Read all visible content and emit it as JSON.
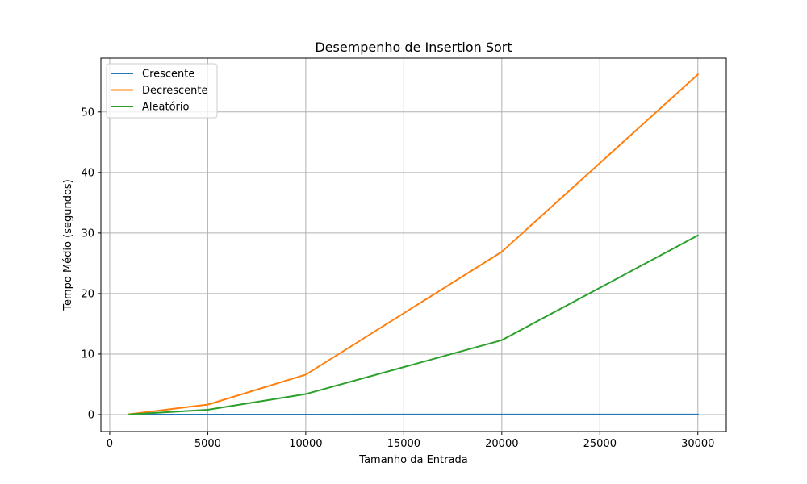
{
  "chart_data": {
    "type": "line",
    "title": "Desempenho de Insertion Sort",
    "xlabel": "Tamanho da Entrada",
    "ylabel": "Tempo Médio (segundos)",
    "x": [
      1000,
      5000,
      10000,
      20000,
      30000
    ],
    "xlim": [
      -0.45,
      31.45
    ],
    "ylim": [
      -2.8,
      58.9
    ],
    "xticks": [
      0,
      5000,
      10000,
      15000,
      20000,
      25000,
      30000
    ],
    "xtick_labels": [
      "0",
      "5000",
      "10000",
      "15000",
      "20000",
      "25000",
      "30000"
    ],
    "yticks": [
      0,
      10,
      20,
      30,
      40,
      50
    ],
    "ytick_labels": [
      "0",
      "10",
      "20",
      "30",
      "40",
      "50"
    ],
    "grid": true,
    "legend_position": "top-left",
    "series": [
      {
        "name": "Crescente",
        "color": "#1f77b4",
        "values": [
          0.0,
          0.003,
          0.005,
          0.01,
          0.015
        ]
      },
      {
        "name": "Decrescente",
        "color": "#ff7f0e",
        "values": [
          0.07,
          1.65,
          6.6,
          26.9,
          56.2
        ]
      },
      {
        "name": "Aleatório",
        "color": "#2ca02c",
        "values": [
          0.03,
          0.8,
          3.4,
          12.3,
          29.6
        ]
      }
    ]
  }
}
